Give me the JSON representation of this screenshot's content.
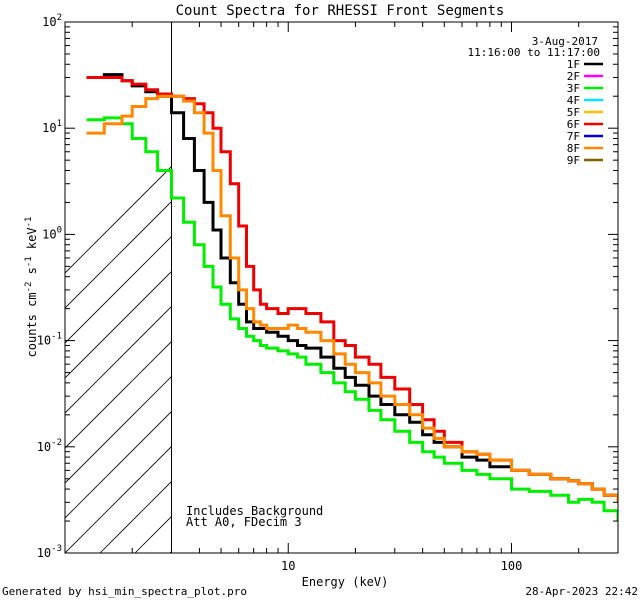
{
  "chart_data": {
    "type": "line",
    "title": "Count Spectra for RHESSI Front Segments",
    "xlabel": "Energy (keV)",
    "ylabel_prefix": "counts cm",
    "ylabel_exp1": "-2",
    "ylabel_mid": " s",
    "ylabel_exp2": "-1",
    "ylabel_mid2": " keV",
    "ylabel_exp3": "-1",
    "xlim": [
      1,
      300
    ],
    "ylim": [
      0.001,
      100
    ],
    "x_scale": "log",
    "y_scale": "log",
    "x_ticks": [
      {
        "value": 10,
        "label": "10"
      },
      {
        "value": 100,
        "label": "100"
      }
    ],
    "y_ticks": [
      {
        "value": 100,
        "base": "10",
        "exp": "2"
      },
      {
        "value": 10,
        "base": "10",
        "exp": "1"
      },
      {
        "value": 1,
        "base": "10",
        "exp": "0"
      },
      {
        "value": 0.1,
        "base": "10",
        "exp": "-1"
      },
      {
        "value": 0.01,
        "base": "10",
        "exp": "-2"
      },
      {
        "value": 0.001,
        "base": "10",
        "exp": "-3"
      }
    ],
    "shaded_region": {
      "from": 1,
      "to": 3,
      "style": "hatched"
    },
    "date": "3-Aug-2017",
    "time_range": "11:16:00 to 11:17:00",
    "legend_position": "top-right",
    "legend": [
      {
        "name": "1F",
        "color": "#000000"
      },
      {
        "name": "2F",
        "color": "#ff00ff"
      },
      {
        "name": "3F",
        "color": "#00ee00"
      },
      {
        "name": "4F",
        "color": "#00e5ff"
      },
      {
        "name": "5F",
        "color": "#ffc000"
      },
      {
        "name": "6F",
        "color": "#ee0000"
      },
      {
        "name": "7F",
        "color": "#0000cc"
      },
      {
        "name": "8F",
        "color": "#ff8800"
      },
      {
        "name": "9F",
        "color": "#806000"
      }
    ],
    "annotations": [
      "Includes Background",
      "Att A0, FDecim 3"
    ],
    "series": [
      {
        "name": "1F",
        "color": "#000000",
        "x": [
          1.25,
          1.5,
          1.8,
          2.0,
          2.3,
          2.6,
          3.0,
          3.4,
          3.8,
          4.2,
          4.6,
          5.0,
          5.5,
          6.0,
          6.5,
          7.0,
          7.5,
          8.0,
          9.0,
          10,
          11,
          12,
          14,
          16,
          18,
          20,
          23,
          26,
          30,
          35,
          40,
          45,
          50,
          60,
          70,
          80,
          100,
          120,
          150,
          180,
          200,
          230,
          260,
          300
        ],
        "y": [
          30,
          32,
          28,
          25,
          22,
          20,
          14,
          8,
          4.0,
          2.0,
          1.1,
          0.6,
          0.35,
          0.22,
          0.15,
          0.13,
          0.13,
          0.12,
          0.11,
          0.1,
          0.09,
          0.085,
          0.07,
          0.055,
          0.045,
          0.038,
          0.03,
          0.025,
          0.02,
          0.017,
          0.013,
          0.011,
          0.01,
          0.008,
          0.0075,
          0.0065,
          0.006,
          0.0055,
          0.005,
          0.0048,
          0.0045,
          0.004,
          0.0035,
          0.003
        ]
      },
      {
        "name": "3F",
        "color": "#00ee00",
        "x": [
          1.25,
          1.5,
          1.8,
          2.0,
          2.3,
          2.6,
          3.0,
          3.4,
          3.8,
          4.2,
          4.6,
          5.0,
          5.5,
          6.0,
          6.5,
          7.0,
          7.5,
          8.0,
          9.0,
          10,
          11,
          12,
          14,
          16,
          18,
          20,
          23,
          26,
          30,
          35,
          40,
          45,
          50,
          60,
          70,
          80,
          100,
          120,
          150,
          180,
          200,
          230,
          260,
          300
        ],
        "y": [
          12,
          12.5,
          11,
          8,
          6,
          4,
          2.2,
          1.3,
          0.8,
          0.5,
          0.32,
          0.22,
          0.16,
          0.13,
          0.11,
          0.1,
          0.09,
          0.085,
          0.08,
          0.075,
          0.07,
          0.06,
          0.05,
          0.04,
          0.033,
          0.028,
          0.022,
          0.018,
          0.014,
          0.011,
          0.009,
          0.008,
          0.007,
          0.006,
          0.0055,
          0.005,
          0.004,
          0.0038,
          0.0035,
          0.003,
          0.0032,
          0.003,
          0.0025,
          0.002
        ]
      },
      {
        "name": "6F",
        "color": "#ee0000",
        "x": [
          1.25,
          1.5,
          1.8,
          2.0,
          2.3,
          2.6,
          3.0,
          3.4,
          3.8,
          4.2,
          4.6,
          5.0,
          5.5,
          6.0,
          6.5,
          7.0,
          7.5,
          8.0,
          9.0,
          10,
          11,
          12,
          14,
          16,
          18,
          20,
          23,
          26,
          30,
          35,
          40,
          45,
          50,
          60,
          70,
          80,
          100,
          120,
          150,
          180,
          200,
          230,
          260,
          300
        ],
        "y": [
          30,
          30,
          28,
          26,
          23,
          21,
          20,
          19,
          17,
          14,
          10,
          6,
          3,
          1.2,
          0.5,
          0.3,
          0.22,
          0.2,
          0.18,
          0.2,
          0.2,
          0.18,
          0.15,
          0.1,
          0.09,
          0.07,
          0.06,
          0.045,
          0.035,
          0.025,
          0.018,
          0.014,
          0.011,
          0.009,
          0.0085,
          0.0075,
          0.006,
          0.0055,
          0.005,
          0.0048,
          0.0045,
          0.004,
          0.0035,
          0.003
        ]
      },
      {
        "name": "8F",
        "color": "#ff8800",
        "x": [
          1.25,
          1.5,
          1.8,
          2.0,
          2.3,
          2.6,
          3.0,
          3.4,
          3.8,
          4.2,
          4.6,
          5.0,
          5.5,
          6.0,
          6.5,
          7.0,
          7.5,
          8.0,
          9.0,
          10,
          11,
          12,
          14,
          16,
          18,
          20,
          23,
          26,
          30,
          35,
          40,
          45,
          50,
          60,
          70,
          80,
          100,
          120,
          150,
          180,
          200,
          230,
          260,
          300
        ],
        "y": [
          9,
          11,
          13,
          16,
          19,
          20,
          20,
          18,
          14,
          9,
          4,
          1.5,
          0.6,
          0.3,
          0.2,
          0.15,
          0.14,
          0.13,
          0.13,
          0.14,
          0.13,
          0.12,
          0.1,
          0.075,
          0.06,
          0.05,
          0.04,
          0.03,
          0.025,
          0.02,
          0.015,
          0.012,
          0.01,
          0.009,
          0.0085,
          0.0075,
          0.006,
          0.0055,
          0.005,
          0.0048,
          0.0045,
          0.004,
          0.0035,
          0.003
        ]
      }
    ]
  },
  "footer": {
    "left": "Generated by hsi_min_spectra_plot.pro",
    "right": "28-Apr-2023 22:42"
  }
}
